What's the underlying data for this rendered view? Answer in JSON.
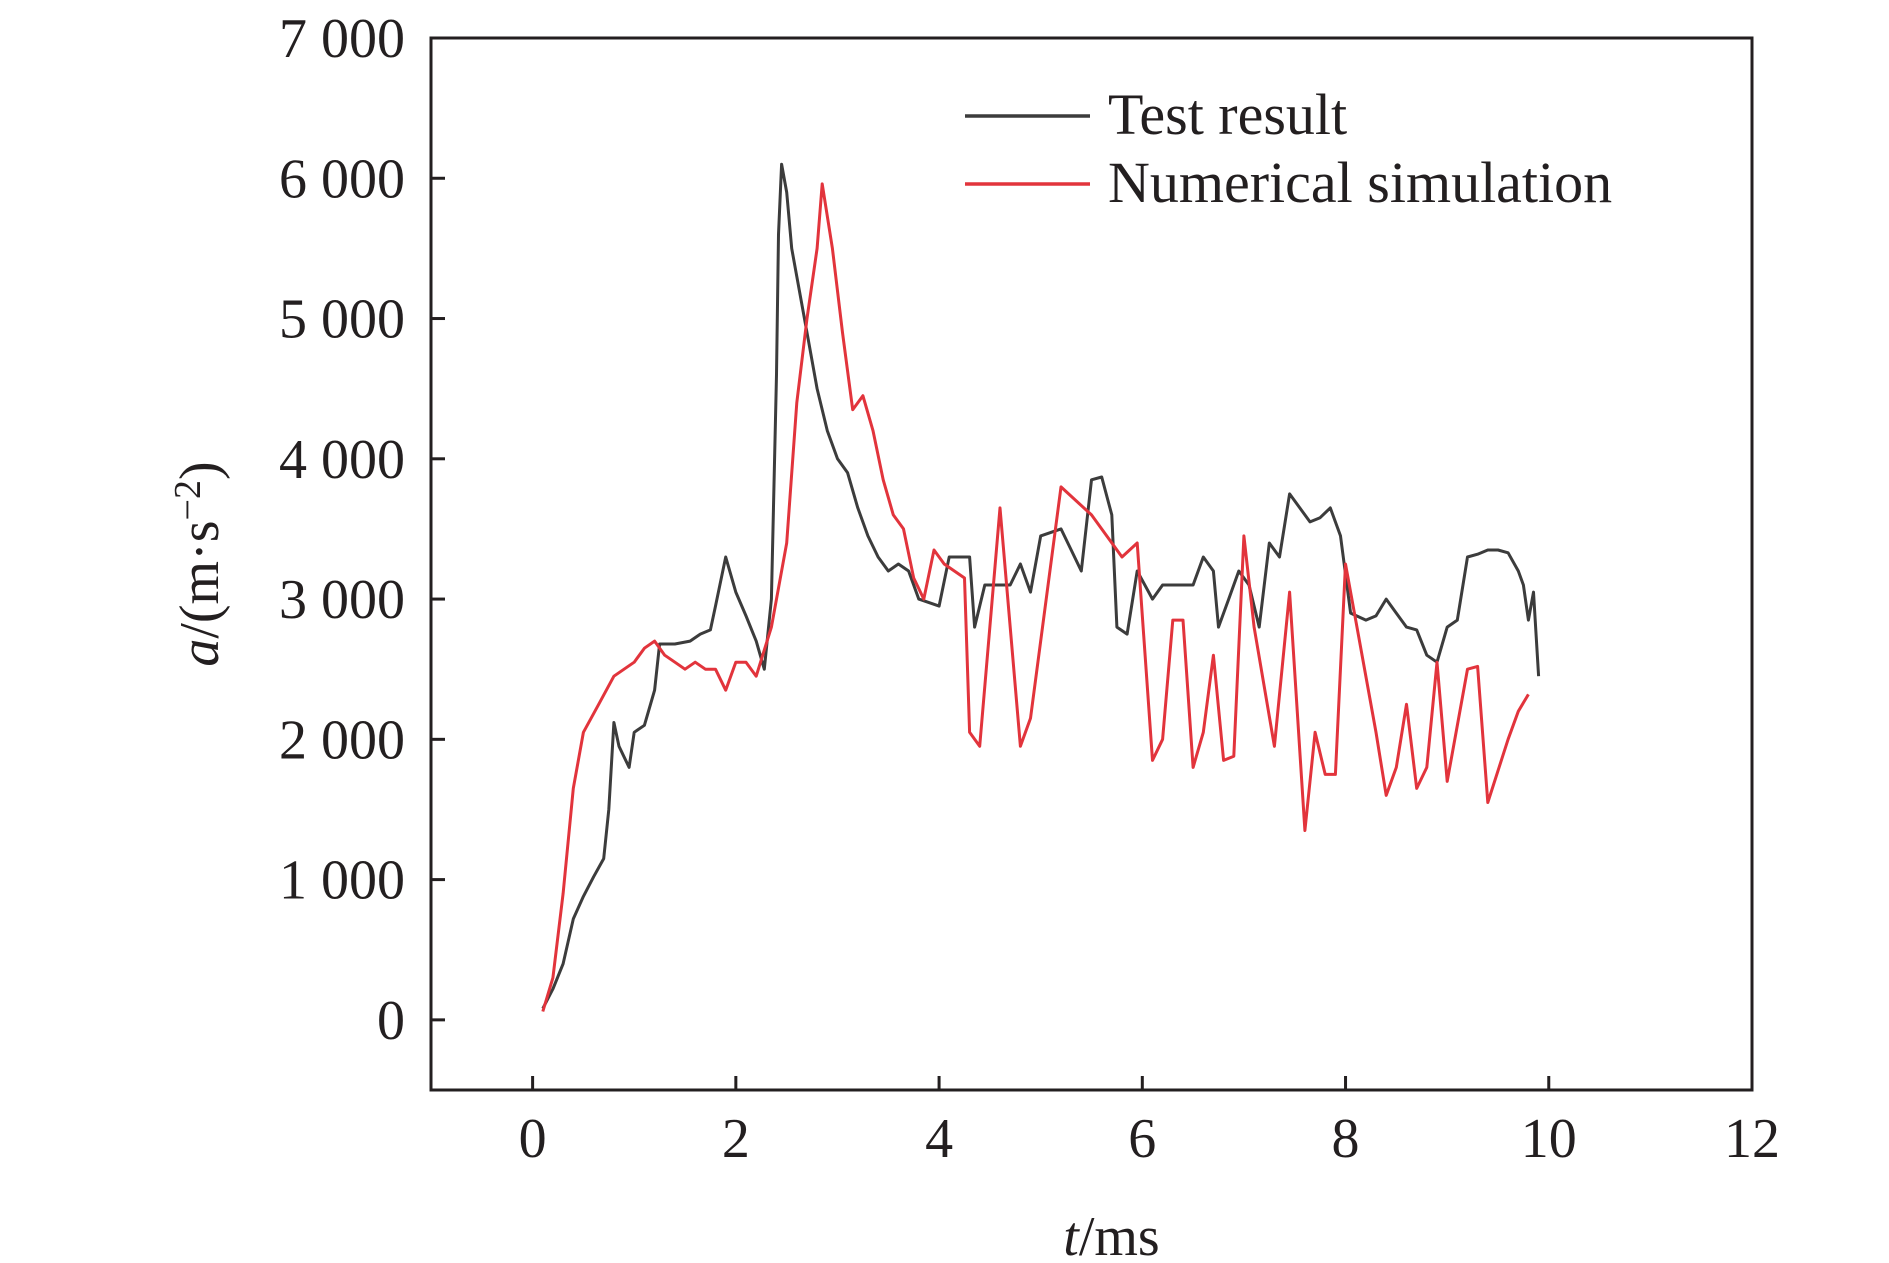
{
  "chart_data": {
    "type": "line",
    "title": "",
    "xlabel": {
      "italic": "t",
      "rest": "/ms"
    },
    "ylabel": {
      "italic": "a",
      "rest": "/(m·s",
      "sup": "−2",
      "close": ")"
    },
    "xlim": [
      -1,
      12
    ],
    "ylim": [
      -500,
      7000
    ],
    "xticks": [
      0,
      2,
      4,
      6,
      8,
      10,
      12
    ],
    "xtick_labels": [
      "0",
      "2",
      "4",
      "6",
      "8",
      "10",
      "12"
    ],
    "yticks": [
      0,
      1000,
      2000,
      3000,
      4000,
      5000,
      6000,
      7000
    ],
    "ytick_labels": [
      "0",
      "1 000",
      "2 000",
      "3 000",
      "4 000",
      "5 000",
      "6 000",
      "7 000"
    ],
    "grid": false,
    "legend_position": "top-right",
    "series": [
      {
        "name": "Test result",
        "color": "#3c3c3c",
        "points": [
          [
            0.1,
            80
          ],
          [
            0.2,
            220
          ],
          [
            0.3,
            400
          ],
          [
            0.4,
            720
          ],
          [
            0.5,
            880
          ],
          [
            0.6,
            1020
          ],
          [
            0.7,
            1150
          ],
          [
            0.75,
            1500
          ],
          [
            0.8,
            2120
          ],
          [
            0.85,
            1950
          ],
          [
            0.95,
            1800
          ],
          [
            1.0,
            2050
          ],
          [
            1.1,
            2100
          ],
          [
            1.2,
            2350
          ],
          [
            1.25,
            2680
          ],
          [
            1.4,
            2680
          ],
          [
            1.55,
            2700
          ],
          [
            1.65,
            2750
          ],
          [
            1.75,
            2780
          ],
          [
            1.8,
            2950
          ],
          [
            1.9,
            3300
          ],
          [
            2.0,
            3050
          ],
          [
            2.1,
            2880
          ],
          [
            2.2,
            2700
          ],
          [
            2.28,
            2500
          ],
          [
            2.35,
            3000
          ],
          [
            2.4,
            4600
          ],
          [
            2.42,
            5600
          ],
          [
            2.45,
            6100
          ],
          [
            2.5,
            5900
          ],
          [
            2.55,
            5500
          ],
          [
            2.6,
            5300
          ],
          [
            2.7,
            4900
          ],
          [
            2.8,
            4500
          ],
          [
            2.9,
            4200
          ],
          [
            3.0,
            4000
          ],
          [
            3.1,
            3900
          ],
          [
            3.2,
            3650
          ],
          [
            3.3,
            3450
          ],
          [
            3.4,
            3300
          ],
          [
            3.5,
            3200
          ],
          [
            3.6,
            3250
          ],
          [
            3.7,
            3200
          ],
          [
            3.8,
            3000
          ],
          [
            4.0,
            2950
          ],
          [
            4.1,
            3300
          ],
          [
            4.3,
            3300
          ],
          [
            4.35,
            2800
          ],
          [
            4.45,
            3100
          ],
          [
            4.6,
            3100
          ],
          [
            4.7,
            3100
          ],
          [
            4.8,
            3250
          ],
          [
            4.9,
            3050
          ],
          [
            5.0,
            3450
          ],
          [
            5.2,
            3500
          ],
          [
            5.3,
            3350
          ],
          [
            5.4,
            3200
          ],
          [
            5.5,
            3850
          ],
          [
            5.6,
            3870
          ],
          [
            5.7,
            3600
          ],
          [
            5.75,
            2800
          ],
          [
            5.85,
            2750
          ],
          [
            5.95,
            3200
          ],
          [
            6.1,
            3000
          ],
          [
            6.2,
            3100
          ],
          [
            6.5,
            3100
          ],
          [
            6.6,
            3300
          ],
          [
            6.7,
            3200
          ],
          [
            6.75,
            2800
          ],
          [
            6.85,
            3000
          ],
          [
            6.95,
            3200
          ],
          [
            7.05,
            3100
          ],
          [
            7.15,
            2800
          ],
          [
            7.25,
            3400
          ],
          [
            7.35,
            3300
          ],
          [
            7.45,
            3750
          ],
          [
            7.55,
            3650
          ],
          [
            7.65,
            3550
          ],
          [
            7.75,
            3580
          ],
          [
            7.85,
            3650
          ],
          [
            7.95,
            3450
          ],
          [
            8.05,
            2900
          ],
          [
            8.2,
            2850
          ],
          [
            8.3,
            2880
          ],
          [
            8.4,
            3000
          ],
          [
            8.5,
            2900
          ],
          [
            8.6,
            2800
          ],
          [
            8.7,
            2780
          ],
          [
            8.8,
            2600
          ],
          [
            8.9,
            2550
          ],
          [
            9.0,
            2800
          ],
          [
            9.1,
            2850
          ],
          [
            9.2,
            3300
          ],
          [
            9.3,
            3320
          ],
          [
            9.4,
            3350
          ],
          [
            9.5,
            3350
          ],
          [
            9.6,
            3330
          ],
          [
            9.7,
            3200
          ],
          [
            9.75,
            3100
          ],
          [
            9.8,
            2850
          ],
          [
            9.85,
            3050
          ],
          [
            9.9,
            2450
          ]
        ]
      },
      {
        "name": "Numerical simulation",
        "color": "#e2343c",
        "points": [
          [
            0.1,
            60
          ],
          [
            0.2,
            300
          ],
          [
            0.3,
            900
          ],
          [
            0.4,
            1650
          ],
          [
            0.5,
            2050
          ],
          [
            0.65,
            2250
          ],
          [
            0.8,
            2450
          ],
          [
            1.0,
            2550
          ],
          [
            1.1,
            2650
          ],
          [
            1.2,
            2700
          ],
          [
            1.3,
            2600
          ],
          [
            1.4,
            2550
          ],
          [
            1.5,
            2500
          ],
          [
            1.6,
            2550
          ],
          [
            1.7,
            2500
          ],
          [
            1.8,
            2500
          ],
          [
            1.9,
            2350
          ],
          [
            2.0,
            2550
          ],
          [
            2.1,
            2550
          ],
          [
            2.2,
            2450
          ],
          [
            2.35,
            2800
          ],
          [
            2.5,
            3400
          ],
          [
            2.6,
            4400
          ],
          [
            2.7,
            5000
          ],
          [
            2.8,
            5500
          ],
          [
            2.85,
            5960
          ],
          [
            2.95,
            5500
          ],
          [
            3.05,
            4900
          ],
          [
            3.15,
            4350
          ],
          [
            3.25,
            4450
          ],
          [
            3.35,
            4200
          ],
          [
            3.45,
            3850
          ],
          [
            3.55,
            3600
          ],
          [
            3.65,
            3500
          ],
          [
            3.75,
            3150
          ],
          [
            3.85,
            3000
          ],
          [
            3.95,
            3350
          ],
          [
            4.05,
            3250
          ],
          [
            4.25,
            3150
          ],
          [
            4.3,
            2050
          ],
          [
            4.4,
            1950
          ],
          [
            4.6,
            3650
          ],
          [
            4.8,
            1950
          ],
          [
            4.9,
            2150
          ],
          [
            5.2,
            3800
          ],
          [
            5.5,
            3600
          ],
          [
            5.8,
            3300
          ],
          [
            5.95,
            3400
          ],
          [
            6.1,
            1850
          ],
          [
            6.2,
            2000
          ],
          [
            6.3,
            2850
          ],
          [
            6.4,
            2850
          ],
          [
            6.5,
            1800
          ],
          [
            6.6,
            2050
          ],
          [
            6.7,
            2600
          ],
          [
            6.8,
            1850
          ],
          [
            6.9,
            1880
          ],
          [
            7.0,
            3450
          ],
          [
            7.1,
            2800
          ],
          [
            7.3,
            1950
          ],
          [
            7.45,
            3050
          ],
          [
            7.6,
            1350
          ],
          [
            7.7,
            2050
          ],
          [
            7.8,
            1750
          ],
          [
            7.9,
            1750
          ],
          [
            8.0,
            3250
          ],
          [
            8.1,
            2850
          ],
          [
            8.3,
            2050
          ],
          [
            8.4,
            1600
          ],
          [
            8.5,
            1800
          ],
          [
            8.6,
            2250
          ],
          [
            8.7,
            1650
          ],
          [
            8.8,
            1800
          ],
          [
            8.9,
            2550
          ],
          [
            9.0,
            1700
          ],
          [
            9.2,
            2500
          ],
          [
            9.3,
            2520
          ],
          [
            9.4,
            1550
          ],
          [
            9.6,
            2000
          ],
          [
            9.7,
            2200
          ],
          [
            9.8,
            2320
          ]
        ]
      }
    ]
  }
}
